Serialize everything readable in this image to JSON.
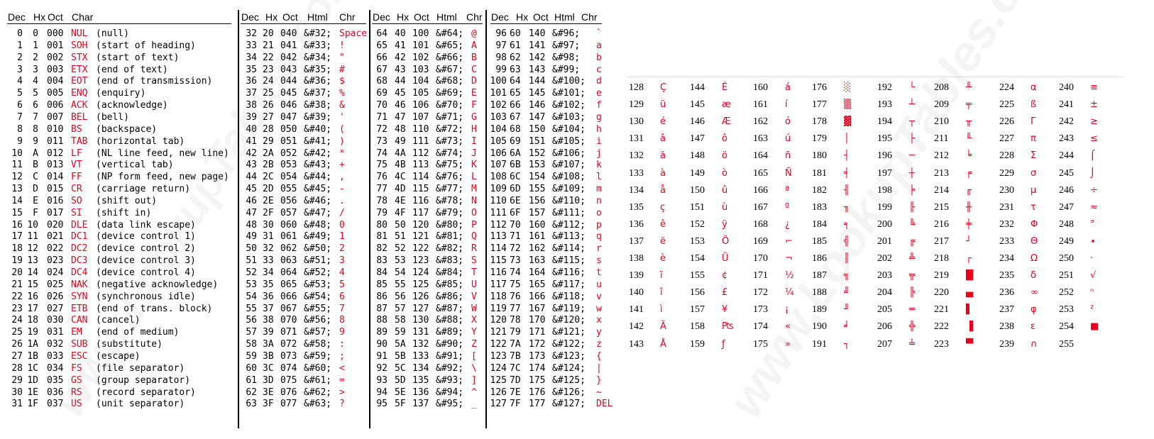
{
  "headers": {
    "g0": [
      "Dec",
      "Hx",
      "Oct",
      "Char"
    ],
    "g1": [
      "Dec",
      "Hx",
      "Oct",
      "Html",
      "Chr"
    ],
    "g2": [
      "Dec",
      "Hx",
      "Oct",
      "Html",
      "Chr"
    ],
    "g3": [
      "Dec",
      "Hx",
      "Oct",
      "Html",
      "Chr"
    ]
  },
  "control_chars": [
    [
      "0",
      "0",
      "000",
      "NUL",
      "(null)"
    ],
    [
      "1",
      "1",
      "001",
      "SOH",
      "(start of heading)"
    ],
    [
      "2",
      "2",
      "002",
      "STX",
      "(start of text)"
    ],
    [
      "3",
      "3",
      "003",
      "ETX",
      "(end of text)"
    ],
    [
      "4",
      "4",
      "004",
      "EOT",
      "(end of transmission)"
    ],
    [
      "5",
      "5",
      "005",
      "ENQ",
      "(enquiry)"
    ],
    [
      "6",
      "6",
      "006",
      "ACK",
      "(acknowledge)"
    ],
    [
      "7",
      "7",
      "007",
      "BEL",
      "(bell)"
    ],
    [
      "8",
      "8",
      "010",
      "BS",
      "(backspace)"
    ],
    [
      "9",
      "9",
      "011",
      "TAB",
      "(horizontal tab)"
    ],
    [
      "10",
      "A",
      "012",
      "LF",
      "(NL line feed, new line)"
    ],
    [
      "11",
      "B",
      "013",
      "VT",
      "(vertical tab)"
    ],
    [
      "12",
      "C",
      "014",
      "FF",
      "(NP form feed, new page)"
    ],
    [
      "13",
      "D",
      "015",
      "CR",
      "(carriage return)"
    ],
    [
      "14",
      "E",
      "016",
      "SO",
      "(shift out)"
    ],
    [
      "15",
      "F",
      "017",
      "SI",
      "(shift in)"
    ],
    [
      "16",
      "10",
      "020",
      "DLE",
      "(data link escape)"
    ],
    [
      "17",
      "11",
      "021",
      "DC1",
      "(device control 1)"
    ],
    [
      "18",
      "12",
      "022",
      "DC2",
      "(device control 2)"
    ],
    [
      "19",
      "13",
      "023",
      "DC3",
      "(device control 3)"
    ],
    [
      "20",
      "14",
      "024",
      "DC4",
      "(device control 4)"
    ],
    [
      "21",
      "15",
      "025",
      "NAK",
      "(negative acknowledge)"
    ],
    [
      "22",
      "16",
      "026",
      "SYN",
      "(synchronous idle)"
    ],
    [
      "23",
      "17",
      "027",
      "ETB",
      "(end of trans. block)"
    ],
    [
      "24",
      "18",
      "030",
      "CAN",
      "(cancel)"
    ],
    [
      "25",
      "19",
      "031",
      "EM",
      "(end of medium)"
    ],
    [
      "26",
      "1A",
      "032",
      "SUB",
      "(substitute)"
    ],
    [
      "27",
      "1B",
      "033",
      "ESC",
      "(escape)"
    ],
    [
      "28",
      "1C",
      "034",
      "FS",
      "(file separator)"
    ],
    [
      "29",
      "1D",
      "035",
      "GS",
      "(group separator)"
    ],
    [
      "30",
      "1E",
      "036",
      "RS",
      "(record separator)"
    ],
    [
      "31",
      "1F",
      "037",
      "US",
      "(unit separator)"
    ]
  ],
  "printable_groups": [
    [
      [
        "32",
        "20",
        "040",
        "&#32;",
        "Space"
      ],
      [
        "33",
        "21",
        "041",
        "&#33;",
        "!"
      ],
      [
        "34",
        "22",
        "042",
        "&#34;",
        "\""
      ],
      [
        "35",
        "23",
        "043",
        "&#35;",
        "#"
      ],
      [
        "36",
        "24",
        "044",
        "&#36;",
        "$"
      ],
      [
        "37",
        "25",
        "045",
        "&#37;",
        "%"
      ],
      [
        "38",
        "26",
        "046",
        "&#38;",
        "&"
      ],
      [
        "39",
        "27",
        "047",
        "&#39;",
        "'"
      ],
      [
        "40",
        "28",
        "050",
        "&#40;",
        "("
      ],
      [
        "41",
        "29",
        "051",
        "&#41;",
        ")"
      ],
      [
        "42",
        "2A",
        "052",
        "&#42;",
        "*"
      ],
      [
        "43",
        "2B",
        "053",
        "&#43;",
        "+"
      ],
      [
        "44",
        "2C",
        "054",
        "&#44;",
        ","
      ],
      [
        "45",
        "2D",
        "055",
        "&#45;",
        "-"
      ],
      [
        "46",
        "2E",
        "056",
        "&#46;",
        "."
      ],
      [
        "47",
        "2F",
        "057",
        "&#47;",
        "/"
      ],
      [
        "48",
        "30",
        "060",
        "&#48;",
        "0"
      ],
      [
        "49",
        "31",
        "061",
        "&#49;",
        "1"
      ],
      [
        "50",
        "32",
        "062",
        "&#50;",
        "2"
      ],
      [
        "51",
        "33",
        "063",
        "&#51;",
        "3"
      ],
      [
        "52",
        "34",
        "064",
        "&#52;",
        "4"
      ],
      [
        "53",
        "35",
        "065",
        "&#53;",
        "5"
      ],
      [
        "54",
        "36",
        "066",
        "&#54;",
        "6"
      ],
      [
        "55",
        "37",
        "067",
        "&#55;",
        "7"
      ],
      [
        "56",
        "38",
        "070",
        "&#56;",
        "8"
      ],
      [
        "57",
        "39",
        "071",
        "&#57;",
        "9"
      ],
      [
        "58",
        "3A",
        "072",
        "&#58;",
        ":"
      ],
      [
        "59",
        "3B",
        "073",
        "&#59;",
        ";"
      ],
      [
        "60",
        "3C",
        "074",
        "&#60;",
        "<"
      ],
      [
        "61",
        "3D",
        "075",
        "&#61;",
        "="
      ],
      [
        "62",
        "3E",
        "076",
        "&#62;",
        ">"
      ],
      [
        "63",
        "3F",
        "077",
        "&#63;",
        "?"
      ]
    ],
    [
      [
        "64",
        "40",
        "100",
        "&#64;",
        "@"
      ],
      [
        "65",
        "41",
        "101",
        "&#65;",
        "A"
      ],
      [
        "66",
        "42",
        "102",
        "&#66;",
        "B"
      ],
      [
        "67",
        "43",
        "103",
        "&#67;",
        "C"
      ],
      [
        "68",
        "44",
        "104",
        "&#68;",
        "D"
      ],
      [
        "69",
        "45",
        "105",
        "&#69;",
        "E"
      ],
      [
        "70",
        "46",
        "106",
        "&#70;",
        "F"
      ],
      [
        "71",
        "47",
        "107",
        "&#71;",
        "G"
      ],
      [
        "72",
        "48",
        "110",
        "&#72;",
        "H"
      ],
      [
        "73",
        "49",
        "111",
        "&#73;",
        "I"
      ],
      [
        "74",
        "4A",
        "112",
        "&#74;",
        "J"
      ],
      [
        "75",
        "4B",
        "113",
        "&#75;",
        "K"
      ],
      [
        "76",
        "4C",
        "114",
        "&#76;",
        "L"
      ],
      [
        "77",
        "4D",
        "115",
        "&#77;",
        "M"
      ],
      [
        "78",
        "4E",
        "116",
        "&#78;",
        "N"
      ],
      [
        "79",
        "4F",
        "117",
        "&#79;",
        "O"
      ],
      [
        "80",
        "50",
        "120",
        "&#80;",
        "P"
      ],
      [
        "81",
        "51",
        "121",
        "&#81;",
        "Q"
      ],
      [
        "82",
        "52",
        "122",
        "&#82;",
        "R"
      ],
      [
        "83",
        "53",
        "123",
        "&#83;",
        "S"
      ],
      [
        "84",
        "54",
        "124",
        "&#84;",
        "T"
      ],
      [
        "85",
        "55",
        "125",
        "&#85;",
        "U"
      ],
      [
        "86",
        "56",
        "126",
        "&#86;",
        "V"
      ],
      [
        "87",
        "57",
        "127",
        "&#87;",
        "W"
      ],
      [
        "88",
        "58",
        "130",
        "&#88;",
        "X"
      ],
      [
        "89",
        "59",
        "131",
        "&#89;",
        "Y"
      ],
      [
        "90",
        "5A",
        "132",
        "&#90;",
        "Z"
      ],
      [
        "91",
        "5B",
        "133",
        "&#91;",
        "["
      ],
      [
        "92",
        "5C",
        "134",
        "&#92;",
        "\\"
      ],
      [
        "93",
        "5D",
        "135",
        "&#93;",
        "]"
      ],
      [
        "94",
        "5E",
        "136",
        "&#94;",
        "^"
      ],
      [
        "95",
        "5F",
        "137",
        "&#95;",
        "_"
      ]
    ],
    [
      [
        "96",
        "60",
        "140",
        "&#96;",
        "`"
      ],
      [
        "97",
        "61",
        "141",
        "&#97;",
        "a"
      ],
      [
        "98",
        "62",
        "142",
        "&#98;",
        "b"
      ],
      [
        "99",
        "63",
        "143",
        "&#99;",
        "c"
      ],
      [
        "100",
        "64",
        "144",
        "&#100;",
        "d"
      ],
      [
        "101",
        "65",
        "145",
        "&#101;",
        "e"
      ],
      [
        "102",
        "66",
        "146",
        "&#102;",
        "f"
      ],
      [
        "103",
        "67",
        "147",
        "&#103;",
        "g"
      ],
      [
        "104",
        "68",
        "150",
        "&#104;",
        "h"
      ],
      [
        "105",
        "69",
        "151",
        "&#105;",
        "i"
      ],
      [
        "106",
        "6A",
        "152",
        "&#106;",
        "j"
      ],
      [
        "107",
        "6B",
        "153",
        "&#107;",
        "k"
      ],
      [
        "108",
        "6C",
        "154",
        "&#108;",
        "l"
      ],
      [
        "109",
        "6D",
        "155",
        "&#109;",
        "m"
      ],
      [
        "110",
        "6E",
        "156",
        "&#110;",
        "n"
      ],
      [
        "111",
        "6F",
        "157",
        "&#111;",
        "o"
      ],
      [
        "112",
        "70",
        "160",
        "&#112;",
        "p"
      ],
      [
        "113",
        "71",
        "161",
        "&#113;",
        "q"
      ],
      [
        "114",
        "72",
        "162",
        "&#114;",
        "r"
      ],
      [
        "115",
        "73",
        "163",
        "&#115;",
        "s"
      ],
      [
        "116",
        "74",
        "164",
        "&#116;",
        "t"
      ],
      [
        "117",
        "75",
        "165",
        "&#117;",
        "u"
      ],
      [
        "118",
        "76",
        "166",
        "&#118;",
        "v"
      ],
      [
        "119",
        "77",
        "167",
        "&#119;",
        "w"
      ],
      [
        "120",
        "78",
        "170",
        "&#120;",
        "x"
      ],
      [
        "121",
        "79",
        "171",
        "&#121;",
        "y"
      ],
      [
        "122",
        "7A",
        "172",
        "&#122;",
        "z"
      ],
      [
        "123",
        "7B",
        "173",
        "&#123;",
        "{"
      ],
      [
        "124",
        "7C",
        "174",
        "&#124;",
        "|"
      ],
      [
        "125",
        "7D",
        "175",
        "&#125;",
        "}"
      ],
      [
        "126",
        "7E",
        "176",
        "&#126;",
        "~"
      ],
      [
        "127",
        "7F",
        "177",
        "&#127;",
        "DEL"
      ]
    ]
  ],
  "extended_columns": [
    [
      [
        "128",
        "Ç"
      ],
      [
        "129",
        "ü"
      ],
      [
        "130",
        "é"
      ],
      [
        "131",
        "â"
      ],
      [
        "132",
        "ä"
      ],
      [
        "133",
        "à"
      ],
      [
        "134",
        "å"
      ],
      [
        "135",
        "ç"
      ],
      [
        "136",
        "ê"
      ],
      [
        "137",
        "ë"
      ],
      [
        "138",
        "è"
      ],
      [
        "139",
        "ï"
      ],
      [
        "140",
        "î"
      ],
      [
        "141",
        "ì"
      ],
      [
        "142",
        "Ä"
      ],
      [
        "143",
        "Å"
      ]
    ],
    [
      [
        "144",
        "É"
      ],
      [
        "145",
        "æ"
      ],
      [
        "146",
        "Æ"
      ],
      [
        "147",
        "ô"
      ],
      [
        "148",
        "ö"
      ],
      [
        "149",
        "ò"
      ],
      [
        "150",
        "û"
      ],
      [
        "151",
        "ù"
      ],
      [
        "152",
        "ÿ"
      ],
      [
        "153",
        "Ö"
      ],
      [
        "154",
        "Ü"
      ],
      [
        "155",
        "¢"
      ],
      [
        "156",
        "£"
      ],
      [
        "157",
        "¥"
      ],
      [
        "158",
        "₧"
      ],
      [
        "159",
        "ƒ"
      ]
    ],
    [
      [
        "160",
        "á"
      ],
      [
        "161",
        "í"
      ],
      [
        "162",
        "ó"
      ],
      [
        "163",
        "ú"
      ],
      [
        "164",
        "ñ"
      ],
      [
        "165",
        "Ñ"
      ],
      [
        "166",
        "ª"
      ],
      [
        "167",
        "º"
      ],
      [
        "168",
        "¿"
      ],
      [
        "169",
        "⌐"
      ],
      [
        "170",
        "¬"
      ],
      [
        "171",
        "½"
      ],
      [
        "172",
        "¼"
      ],
      [
        "173",
        "¡"
      ],
      [
        "174",
        "«"
      ],
      [
        "175",
        "»"
      ]
    ],
    [
      [
        "176",
        "░"
      ],
      [
        "177",
        "▒"
      ],
      [
        "178",
        "▓"
      ],
      [
        "179",
        "│"
      ],
      [
        "180",
        "┤"
      ],
      [
        "181",
        "╡"
      ],
      [
        "182",
        "╢"
      ],
      [
        "183",
        "╖"
      ],
      [
        "184",
        "╕"
      ],
      [
        "185",
        "╣"
      ],
      [
        "186",
        "║"
      ],
      [
        "187",
        "╗"
      ],
      [
        "188",
        "╝"
      ],
      [
        "189",
        "╜"
      ],
      [
        "190",
        "╛"
      ],
      [
        "191",
        "┐"
      ]
    ],
    [
      [
        "192",
        "└"
      ],
      [
        "193",
        "┴"
      ],
      [
        "194",
        "┬"
      ],
      [
        "195",
        "├"
      ],
      [
        "196",
        "─"
      ],
      [
        "197",
        "┼"
      ],
      [
        "198",
        "╞"
      ],
      [
        "199",
        "╟"
      ],
      [
        "200",
        "╚"
      ],
      [
        "201",
        "╔"
      ],
      [
        "202",
        "╩"
      ],
      [
        "203",
        "╦"
      ],
      [
        "204",
        "╠"
      ],
      [
        "205",
        "═"
      ],
      [
        "206",
        "╬"
      ],
      [
        "207",
        "╧"
      ]
    ],
    [
      [
        "208",
        "╨"
      ],
      [
        "209",
        "╤"
      ],
      [
        "210",
        "╥"
      ],
      [
        "211",
        "╙"
      ],
      [
        "212",
        "╘"
      ],
      [
        "213",
        "╒"
      ],
      [
        "214",
        "╓"
      ],
      [
        "215",
        "╫"
      ],
      [
        "216",
        "╪"
      ],
      [
        "217",
        "┘"
      ],
      [
        "218",
        "┌"
      ],
      [
        "219",
        "█"
      ],
      [
        "220",
        "▄"
      ],
      [
        "221",
        "▌"
      ],
      [
        "222",
        "▐"
      ],
      [
        "223",
        "▀"
      ]
    ],
    [
      [
        "224",
        "α"
      ],
      [
        "225",
        "ß"
      ],
      [
        "226",
        "Γ"
      ],
      [
        "227",
        "π"
      ],
      [
        "228",
        "Σ"
      ],
      [
        "229",
        "σ"
      ],
      [
        "230",
        "µ"
      ],
      [
        "231",
        "τ"
      ],
      [
        "232",
        "Φ"
      ],
      [
        "233",
        "Θ"
      ],
      [
        "234",
        "Ω"
      ],
      [
        "235",
        "δ"
      ],
      [
        "236",
        "∞"
      ],
      [
        "237",
        "φ"
      ],
      [
        "238",
        "ε"
      ],
      [
        "239",
        "∩"
      ]
    ],
    [
      [
        "240",
        "≡"
      ],
      [
        "241",
        "±"
      ],
      [
        "242",
        "≥"
      ],
      [
        "243",
        "≤"
      ],
      [
        "244",
        "⌠"
      ],
      [
        "245",
        "⌡"
      ],
      [
        "246",
        "÷"
      ],
      [
        "247",
        "≈"
      ],
      [
        "248",
        "°"
      ],
      [
        "249",
        "∙"
      ],
      [
        "250",
        "·"
      ],
      [
        "251",
        "√"
      ],
      [
        "252",
        "ⁿ"
      ],
      [
        "253",
        "²"
      ],
      [
        "254",
        "■"
      ],
      [
        "255",
        ""
      ]
    ]
  ],
  "watermark": "www.LookupTables.com",
  "colors": {
    "accent": "#e8001c",
    "text": "#000000"
  }
}
